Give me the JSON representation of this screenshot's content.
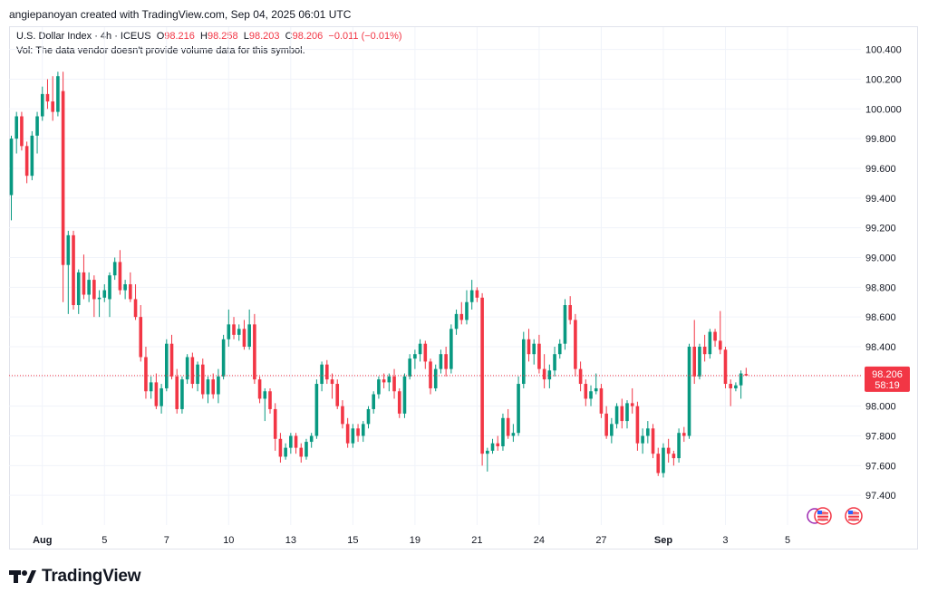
{
  "header": {
    "attribution": "angiepanoyan created with TradingView.com, Sep 04, 2025 06:01 UTC"
  },
  "legend": {
    "symbol": "U.S. Dollar Index · 4h · ICEUS",
    "open_label": "O",
    "open": "98.216",
    "high_label": "H",
    "high": "98.258",
    "low_label": "L",
    "low": "98.203",
    "close_label": "C",
    "close": "98.206",
    "change": "−0.011 (−0.01%)",
    "vol_note": "Vol: The data vendor doesn't provide volume data for this symbol."
  },
  "price_tag": {
    "value": "98.206",
    "countdown": "58:19"
  },
  "footer": {
    "brand": "TradingView"
  },
  "colors": {
    "up": "#089981",
    "down": "#f23645",
    "grid": "#f0f3fa",
    "axis_text": "#131722"
  },
  "chart_data": {
    "type": "candlestick",
    "timeframe": "4h",
    "ylim": [
      97.2,
      100.55
    ],
    "yticks": [
      97.4,
      97.6,
      97.8,
      98.0,
      98.2,
      98.4,
      98.6,
      98.8,
      99.0,
      99.2,
      99.4,
      99.6,
      99.8,
      100.0,
      100.2,
      100.4
    ],
    "ytick_labels": [
      "97.400",
      "97.600",
      "97.800",
      "98.000",
      "98.200",
      "98.400",
      "98.600",
      "98.800",
      "99.000",
      "99.200",
      "99.400",
      "99.600",
      "99.800",
      "100.000",
      "100.200",
      "100.400"
    ],
    "xticks": [
      {
        "label": "Aug",
        "bar": 6
      },
      {
        "label": "5",
        "bar": 18
      },
      {
        "label": "7",
        "bar": 30
      },
      {
        "label": "10",
        "bar": 42
      },
      {
        "label": "13",
        "bar": 54
      },
      {
        "label": "15",
        "bar": 66
      },
      {
        "label": "19",
        "bar": 78
      },
      {
        "label": "21",
        "bar": 90
      },
      {
        "label": "24",
        "bar": 102
      },
      {
        "label": "27",
        "bar": 114
      },
      {
        "label": "Sep",
        "bar": 126
      },
      {
        "label": "3",
        "bar": 138
      },
      {
        "label": "5",
        "bar": 150
      }
    ],
    "last_price": 98.206,
    "candles": [
      [
        99.42,
        99.82,
        99.25,
        99.8
      ],
      [
        99.8,
        99.98,
        99.7,
        99.95
      ],
      [
        99.95,
        99.98,
        99.72,
        99.75
      ],
      [
        99.75,
        99.78,
        99.5,
        99.55
      ],
      [
        99.55,
        99.85,
        99.52,
        99.82
      ],
      [
        99.82,
        99.98,
        99.7,
        99.95
      ],
      [
        99.95,
        100.15,
        99.92,
        100.1
      ],
      [
        100.1,
        100.2,
        100.0,
        100.05
      ],
      [
        100.05,
        100.22,
        99.92,
        99.98
      ],
      [
        99.98,
        100.25,
        99.95,
        100.22
      ],
      [
        100.12,
        100.25,
        98.7,
        98.95
      ],
      [
        98.95,
        99.18,
        98.62,
        99.15
      ],
      [
        99.15,
        99.18,
        98.65,
        98.68
      ],
      [
        98.68,
        98.92,
        98.62,
        98.9
      ],
      [
        98.9,
        99.02,
        98.72,
        98.75
      ],
      [
        98.75,
        98.9,
        98.7,
        98.85
      ],
      [
        98.85,
        98.88,
        98.6,
        98.72
      ],
      [
        98.72,
        98.78,
        98.6,
        98.73
      ],
      [
        98.73,
        98.82,
        98.7,
        98.78
      ],
      [
        98.72,
        98.9,
        98.6,
        98.88
      ],
      [
        98.88,
        99.0,
        98.85,
        98.97
      ],
      [
        98.97,
        99.05,
        98.75,
        98.78
      ],
      [
        98.78,
        98.85,
        98.72,
        98.82
      ],
      [
        98.82,
        98.9,
        98.7,
        98.72
      ],
      [
        98.72,
        98.82,
        98.58,
        98.6
      ],
      [
        98.6,
        98.68,
        98.3,
        98.33
      ],
      [
        98.33,
        98.4,
        98.05,
        98.1
      ],
      [
        98.1,
        98.2,
        98.05,
        98.16
      ],
      [
        98.16,
        98.22,
        97.98,
        98.0
      ],
      [
        98.0,
        98.15,
        97.95,
        98.12
      ],
      [
        98.12,
        98.45,
        98.1,
        98.42
      ],
      [
        98.42,
        98.48,
        98.18,
        98.2
      ],
      [
        98.2,
        98.25,
        97.95,
        97.98
      ],
      [
        97.98,
        98.2,
        97.95,
        98.18
      ],
      [
        98.18,
        98.35,
        98.15,
        98.33
      ],
      [
        98.33,
        98.36,
        98.12,
        98.15
      ],
      [
        98.15,
        98.3,
        98.1,
        98.28
      ],
      [
        98.28,
        98.32,
        98.05,
        98.08
      ],
      [
        98.08,
        98.2,
        98.02,
        98.18
      ],
      [
        98.18,
        98.22,
        98.05,
        98.08
      ],
      [
        98.08,
        98.25,
        98.02,
        98.2
      ],
      [
        98.2,
        98.48,
        98.18,
        98.45
      ],
      [
        98.45,
        98.65,
        98.4,
        98.55
      ],
      [
        98.55,
        98.6,
        98.45,
        98.48
      ],
      [
        98.48,
        98.55,
        98.44,
        98.52
      ],
      [
        98.52,
        98.58,
        98.38,
        98.4
      ],
      [
        98.4,
        98.65,
        98.38,
        98.55
      ],
      [
        98.55,
        98.62,
        98.15,
        98.18
      ],
      [
        98.18,
        98.2,
        98.02,
        98.05
      ],
      [
        98.05,
        98.12,
        97.9,
        98.1
      ],
      [
        98.1,
        98.12,
        97.95,
        97.98
      ],
      [
        97.98,
        98.02,
        97.7,
        97.78
      ],
      [
        97.78,
        97.82,
        97.62,
        97.66
      ],
      [
        97.66,
        97.75,
        97.64,
        97.72
      ],
      [
        97.72,
        97.82,
        97.68,
        97.8
      ],
      [
        97.8,
        97.82,
        97.68,
        97.72
      ],
      [
        97.72,
        97.75,
        97.62,
        97.66
      ],
      [
        97.66,
        97.78,
        97.64,
        97.76
      ],
      [
        97.76,
        97.82,
        97.72,
        97.8
      ],
      [
        97.8,
        98.18,
        97.78,
        98.15
      ],
      [
        98.15,
        98.3,
        98.1,
        98.28
      ],
      [
        98.28,
        98.31,
        98.15,
        98.18
      ],
      [
        98.18,
        98.22,
        98.05,
        98.15
      ],
      [
        98.15,
        98.18,
        97.98,
        98.0
      ],
      [
        98.0,
        98.04,
        97.85,
        97.88
      ],
      [
        97.88,
        97.92,
        97.72,
        97.75
      ],
      [
        97.75,
        97.88,
        97.72,
        97.85
      ],
      [
        97.85,
        97.88,
        97.76,
        97.8
      ],
      [
        97.8,
        97.9,
        97.76,
        97.88
      ],
      [
        97.88,
        98.0,
        97.85,
        97.98
      ],
      [
        97.98,
        98.1,
        97.95,
        98.08
      ],
      [
        98.08,
        98.2,
        98.05,
        98.18
      ],
      [
        98.18,
        98.22,
        98.12,
        98.16
      ],
      [
        98.16,
        98.22,
        98.1,
        98.2
      ],
      [
        98.2,
        98.25,
        98.05,
        98.1
      ],
      [
        98.1,
        98.12,
        97.92,
        97.95
      ],
      [
        97.95,
        98.22,
        97.92,
        98.2
      ],
      [
        98.2,
        98.35,
        98.18,
        98.32
      ],
      [
        98.32,
        98.38,
        98.25,
        98.35
      ],
      [
        98.35,
        98.45,
        98.3,
        98.42
      ],
      [
        98.42,
        98.44,
        98.25,
        98.3
      ],
      [
        98.3,
        98.32,
        98.08,
        98.12
      ],
      [
        98.12,
        98.28,
        98.1,
        98.25
      ],
      [
        98.25,
        98.38,
        98.22,
        98.35
      ],
      [
        98.35,
        98.4,
        98.2,
        98.25
      ],
      [
        98.25,
        98.55,
        98.22,
        98.52
      ],
      [
        98.52,
        98.65,
        98.48,
        98.62
      ],
      [
        98.62,
        98.7,
        98.55,
        98.58
      ],
      [
        98.58,
        98.78,
        98.55,
        98.7
      ],
      [
        98.7,
        98.85,
        98.65,
        98.78
      ],
      [
        98.78,
        98.8,
        98.7,
        98.73
      ],
      [
        98.73,
        98.76,
        97.6,
        97.68
      ],
      [
        97.68,
        97.72,
        97.56,
        97.7
      ],
      [
        97.7,
        97.78,
        97.68,
        97.75
      ],
      [
        97.75,
        97.8,
        97.7,
        97.73
      ],
      [
        97.73,
        97.95,
        97.7,
        97.92
      ],
      [
        97.92,
        97.98,
        97.78,
        97.8
      ],
      [
        97.8,
        97.88,
        97.76,
        97.82
      ],
      [
        97.82,
        98.2,
        97.8,
        98.15
      ],
      [
        98.15,
        98.5,
        98.12,
        98.45
      ],
      [
        98.45,
        98.52,
        98.3,
        98.35
      ],
      [
        98.35,
        98.45,
        98.28,
        98.42
      ],
      [
        98.42,
        98.48,
        98.22,
        98.25
      ],
      [
        98.25,
        98.35,
        98.12,
        98.18
      ],
      [
        98.18,
        98.28,
        98.12,
        98.24
      ],
      [
        98.24,
        98.4,
        98.2,
        98.35
      ],
      [
        98.35,
        98.45,
        98.32,
        98.42
      ],
      [
        98.42,
        98.72,
        98.38,
        98.68
      ],
      [
        98.68,
        98.74,
        98.55,
        98.58
      ],
      [
        98.58,
        98.62,
        98.2,
        98.25
      ],
      [
        98.25,
        98.3,
        98.1,
        98.15
      ],
      [
        98.15,
        98.18,
        98.0,
        98.05
      ],
      [
        98.05,
        98.14,
        98.0,
        98.1
      ],
      [
        98.1,
        98.22,
        98.08,
        98.12
      ],
      [
        98.12,
        98.15,
        97.92,
        97.95
      ],
      [
        97.95,
        98.0,
        97.78,
        97.8
      ],
      [
        97.8,
        97.92,
        97.75,
        97.88
      ],
      [
        97.88,
        98.02,
        97.85,
        98.0
      ],
      [
        98.0,
        98.05,
        97.85,
        97.9
      ],
      [
        97.9,
        98.04,
        97.85,
        98.02
      ],
      [
        98.02,
        98.12,
        97.95,
        98.0
      ],
      [
        98.0,
        98.03,
        97.7,
        97.75
      ],
      [
        97.75,
        97.85,
        97.68,
        97.8
      ],
      [
        97.8,
        97.9,
        97.75,
        97.85
      ],
      [
        97.85,
        97.88,
        97.65,
        97.68
      ],
      [
        97.68,
        97.72,
        97.53,
        97.55
      ],
      [
        97.55,
        97.75,
        97.52,
        97.72
      ],
      [
        97.72,
        97.78,
        97.62,
        97.68
      ],
      [
        97.68,
        97.7,
        97.6,
        97.65
      ],
      [
        97.65,
        97.85,
        97.62,
        97.82
      ],
      [
        97.82,
        97.86,
        97.76,
        97.8
      ],
      [
        97.8,
        98.42,
        97.78,
        98.4
      ],
      [
        98.4,
        98.58,
        98.15,
        98.2
      ],
      [
        98.2,
        98.42,
        98.18,
        98.4
      ],
      [
        98.4,
        98.48,
        98.3,
        98.35
      ],
      [
        98.35,
        98.52,
        98.32,
        98.5
      ],
      [
        98.5,
        98.52,
        98.4,
        98.44
      ],
      [
        98.44,
        98.64,
        98.35,
        98.38
      ],
      [
        98.38,
        98.4,
        98.12,
        98.15
      ],
      [
        98.15,
        98.18,
        98.0,
        98.12
      ],
      [
        98.12,
        98.16,
        98.1,
        98.14
      ],
      [
        98.14,
        98.24,
        98.05,
        98.22
      ],
      [
        98.216,
        98.258,
        98.203,
        98.206
      ]
    ]
  }
}
